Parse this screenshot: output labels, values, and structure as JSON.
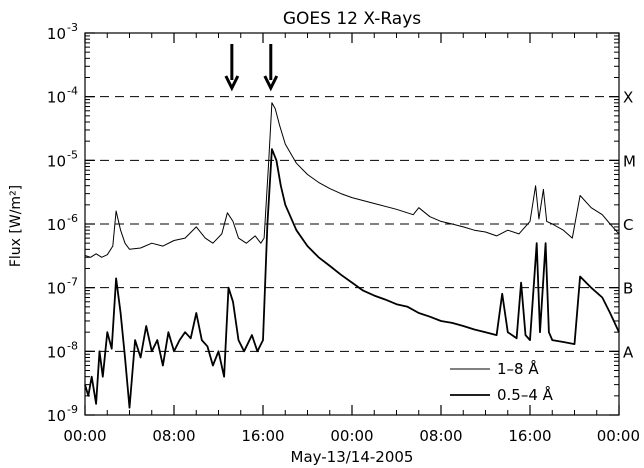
{
  "chart_data": {
    "type": "line",
    "title": "GOES 12 X-Rays",
    "xlabel": "May-13/14-2005",
    "ylabel": "Flux [W/m²]",
    "x_unit": "hours from 2005-05-13 00:00",
    "xlim": [
      0,
      48
    ],
    "ylim": [
      1e-09,
      0.001
    ],
    "yscale": "log",
    "x_ticks": [
      0,
      8,
      16,
      24,
      32,
      40,
      48
    ],
    "x_tick_labels": [
      "00:00",
      "08:00",
      "16:00",
      "00:00",
      "08:00",
      "16:00",
      "00:00"
    ],
    "y_tick_labels": [
      {
        "value": 1e-09,
        "base": "10",
        "exp": "-9"
      },
      {
        "value": 1e-08,
        "base": "10",
        "exp": "-8"
      },
      {
        "value": 1e-07,
        "base": "10",
        "exp": "-7"
      },
      {
        "value": 1e-06,
        "base": "10",
        "exp": "-6"
      },
      {
        "value": 1e-05,
        "base": "10",
        "exp": "-5"
      },
      {
        "value": 0.0001,
        "base": "10",
        "exp": "-4"
      },
      {
        "value": 0.001,
        "base": "10",
        "exp": "-3"
      }
    ],
    "class_levels": [
      {
        "label": "X",
        "value": 0.0001
      },
      {
        "label": "M",
        "value": 1e-05
      },
      {
        "label": "C",
        "value": 1e-06
      },
      {
        "label": "B",
        "value": 1e-07
      },
      {
        "label": "A",
        "value": 1e-08
      }
    ],
    "arrows_x": [
      13.2,
      16.7
    ],
    "legend_position": "bottom-right",
    "series": [
      {
        "name": "1–8 Å",
        "stroke_width": 1,
        "points": [
          [
            0,
            3.2e-07
          ],
          [
            0.5,
            3e-07
          ],
          [
            1,
            3.4e-07
          ],
          [
            1.5,
            3e-07
          ],
          [
            2,
            3.3e-07
          ],
          [
            2.5,
            4.5e-07
          ],
          [
            2.8,
            1.6e-06
          ],
          [
            3.2,
            8e-07
          ],
          [
            3.6,
            5e-07
          ],
          [
            4,
            4e-07
          ],
          [
            5,
            4.2e-07
          ],
          [
            6,
            5e-07
          ],
          [
            7,
            4.5e-07
          ],
          [
            8,
            5.5e-07
          ],
          [
            9,
            6e-07
          ],
          [
            10,
            9e-07
          ],
          [
            10.8,
            6e-07
          ],
          [
            11.5,
            5e-07
          ],
          [
            12.3,
            7e-07
          ],
          [
            12.8,
            1.5e-06
          ],
          [
            13.3,
            1.1e-06
          ],
          [
            13.8,
            6e-07
          ],
          [
            14.5,
            5e-07
          ],
          [
            15.3,
            6.5e-07
          ],
          [
            15.8,
            5e-07
          ],
          [
            16.1,
            6e-07
          ],
          [
            16.5,
            9e-06
          ],
          [
            16.8,
            8e-05
          ],
          [
            17.1,
            6.5e-05
          ],
          [
            17.5,
            3.5e-05
          ],
          [
            18,
            1.8e-05
          ],
          [
            19,
            9e-06
          ],
          [
            20,
            6e-06
          ],
          [
            21,
            4.5e-06
          ],
          [
            22,
            3.6e-06
          ],
          [
            23,
            3e-06
          ],
          [
            24,
            2.6e-06
          ],
          [
            26,
            2.1e-06
          ],
          [
            28,
            1.7e-06
          ],
          [
            29.5,
            1.4e-06
          ],
          [
            30,
            1.8e-06
          ],
          [
            31,
            1.3e-06
          ],
          [
            32,
            1.1e-06
          ],
          [
            33,
            1e-06
          ],
          [
            34,
            9e-07
          ],
          [
            35,
            8e-07
          ],
          [
            36,
            7.5e-07
          ],
          [
            37,
            6.5e-07
          ],
          [
            38,
            8e-07
          ],
          [
            39,
            7e-07
          ],
          [
            40,
            1.1e-06
          ],
          [
            40.5,
            4e-06
          ],
          [
            40.8,
            1.2e-06
          ],
          [
            41.2,
            3.5e-06
          ],
          [
            41.5,
            1.1e-06
          ],
          [
            42,
            1e-06
          ],
          [
            43,
            8e-07
          ],
          [
            43.8,
            6e-07
          ],
          [
            44.5,
            2.8e-06
          ],
          [
            45.5,
            1.8e-06
          ],
          [
            46.5,
            1.4e-06
          ],
          [
            47.2,
            1e-06
          ],
          [
            48,
            7e-07
          ]
        ]
      },
      {
        "name": "0.5–4 Å",
        "stroke_width": 1.8,
        "points": [
          [
            0,
            3e-09
          ],
          [
            0.3,
            2e-09
          ],
          [
            0.6,
            4e-09
          ],
          [
            1,
            1.5e-09
          ],
          [
            1.3,
            1e-08
          ],
          [
            1.6,
            4e-09
          ],
          [
            2,
            2e-08
          ],
          [
            2.4,
            1.1e-08
          ],
          [
            2.8,
            1.4e-07
          ],
          [
            3.2,
            4e-08
          ],
          [
            3.6,
            8e-09
          ],
          [
            4,
            1.3e-09
          ],
          [
            4.5,
            1.5e-08
          ],
          [
            5,
            8e-09
          ],
          [
            5.5,
            2.5e-08
          ],
          [
            6,
            1e-08
          ],
          [
            6.5,
            1.5e-08
          ],
          [
            7,
            6e-09
          ],
          [
            7.5,
            2e-08
          ],
          [
            8,
            1e-08
          ],
          [
            8.5,
            1.5e-08
          ],
          [
            9,
            2e-08
          ],
          [
            9.5,
            1.6e-08
          ],
          [
            10,
            4e-08
          ],
          [
            10.5,
            1.5e-08
          ],
          [
            11,
            1.2e-08
          ],
          [
            11.5,
            6e-09
          ],
          [
            12,
            1e-08
          ],
          [
            12.5,
            4e-09
          ],
          [
            12.9,
            1e-07
          ],
          [
            13.3,
            6e-08
          ],
          [
            13.8,
            1.5e-08
          ],
          [
            14.3,
            1e-08
          ],
          [
            15,
            1.8e-08
          ],
          [
            15.5,
            1e-08
          ],
          [
            16,
            1.5e-08
          ],
          [
            16.4,
            1e-06
          ],
          [
            16.8,
            1.5e-05
          ],
          [
            17.2,
            1e-05
          ],
          [
            17.6,
            4e-06
          ],
          [
            18,
            2e-06
          ],
          [
            19,
            8e-07
          ],
          [
            20,
            4.5e-07
          ],
          [
            21,
            3e-07
          ],
          [
            22,
            2.2e-07
          ],
          [
            23,
            1.6e-07
          ],
          [
            24,
            1.2e-07
          ],
          [
            25,
            9e-08
          ],
          [
            26,
            7.5e-08
          ],
          [
            27,
            6.5e-08
          ],
          [
            28,
            5.5e-08
          ],
          [
            29,
            5e-08
          ],
          [
            30,
            4e-08
          ],
          [
            31,
            3.5e-08
          ],
          [
            32,
            3e-08
          ],
          [
            33,
            2.8e-08
          ],
          [
            34,
            2.5e-08
          ],
          [
            35,
            2.2e-08
          ],
          [
            36,
            2e-08
          ],
          [
            37,
            1.8e-08
          ],
          [
            37.5,
            8e-08
          ],
          [
            38,
            2e-08
          ],
          [
            38.8,
            1.6e-08
          ],
          [
            39.2,
            1.2e-07
          ],
          [
            39.6,
            1.8e-08
          ],
          [
            40,
            1.5e-08
          ],
          [
            40.6,
            5e-07
          ],
          [
            40.9,
            2e-08
          ],
          [
            41.4,
            5e-07
          ],
          [
            41.7,
            2e-08
          ],
          [
            42,
            1.5e-08
          ],
          [
            43,
            1.4e-08
          ],
          [
            44,
            1.3e-08
          ],
          [
            44.5,
            1.5e-07
          ],
          [
            45.5,
            1e-07
          ],
          [
            46.5,
            7e-08
          ],
          [
            47.2,
            4e-08
          ],
          [
            48,
            2e-08
          ]
        ]
      }
    ]
  }
}
